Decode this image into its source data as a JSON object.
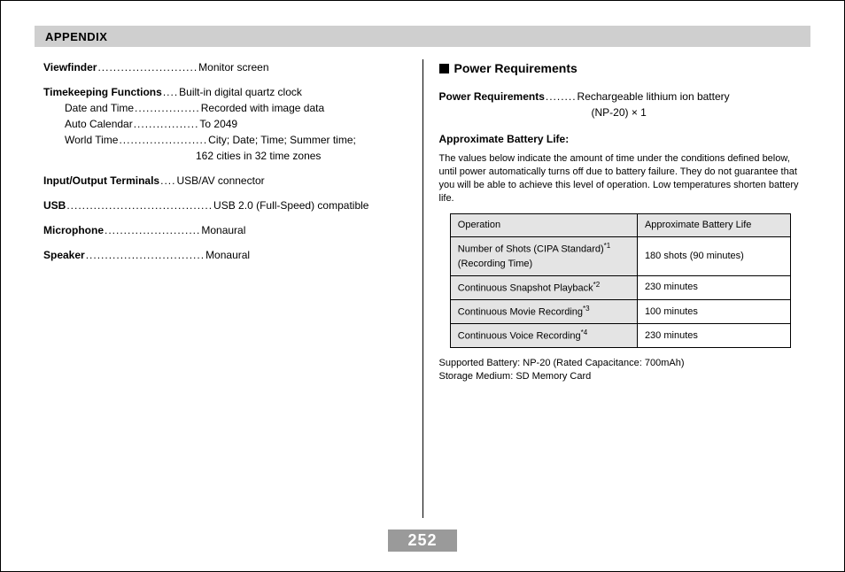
{
  "header": {
    "title": "APPENDIX"
  },
  "page_number": "252",
  "left": {
    "specs": [
      {
        "label": "Viewfinder",
        "value": "Monitor screen"
      },
      {
        "label": "Timekeeping Functions",
        "value": "Built-in digital quartz clock",
        "sub": [
          {
            "label": "Date and Time",
            "value": "Recorded with image data"
          },
          {
            "label": "Auto Calendar",
            "value": "To 2049"
          },
          {
            "label": "World Time",
            "value": "City; Date; Time; Summer time;",
            "cont": "162 cities in 32 time zones"
          }
        ]
      },
      {
        "label": "Input/Output Terminals",
        "value": "USB/AV connector"
      },
      {
        "label": "USB",
        "value": "USB 2.0 (Full-Speed) compatible"
      },
      {
        "label": "Microphone",
        "value": "Monaural"
      },
      {
        "label": "Speaker",
        "value": "Monaural"
      }
    ]
  },
  "right": {
    "section_title": "Power Requirements",
    "power_req": {
      "label": "Power Requirements",
      "value": "Rechargeable lithium ion battery",
      "cont": "(NP-20) × 1"
    },
    "approx_head": "Approximate Battery Life:",
    "approx_body": "The values below indicate the amount of time under the conditions defined below, until power automatically turns off due to battery failure. They do not guarantee that you will be able to achieve this level of operation. Low temperatures shorten battery life.",
    "table": {
      "headers": [
        "Operation",
        "Approximate Battery Life"
      ],
      "rows": [
        {
          "op": "Number of Shots (CIPA Standard)",
          "sup": "*1",
          "op2": "(Recording Time)",
          "val": "180 shots (90 minutes)"
        },
        {
          "op": "Continuous Snapshot Playback",
          "sup": "*2",
          "val": "230 minutes"
        },
        {
          "op": "Continuous Movie Recording",
          "sup": "*3",
          "val": "100 minutes"
        },
        {
          "op": "Continuous Voice Recording",
          "sup": "*4",
          "val": "230 minutes"
        }
      ]
    },
    "footer_lines": [
      "Supported Battery: NP-20 (Rated Capacitance: 700mAh)",
      "Storage Medium: SD Memory Card"
    ]
  }
}
